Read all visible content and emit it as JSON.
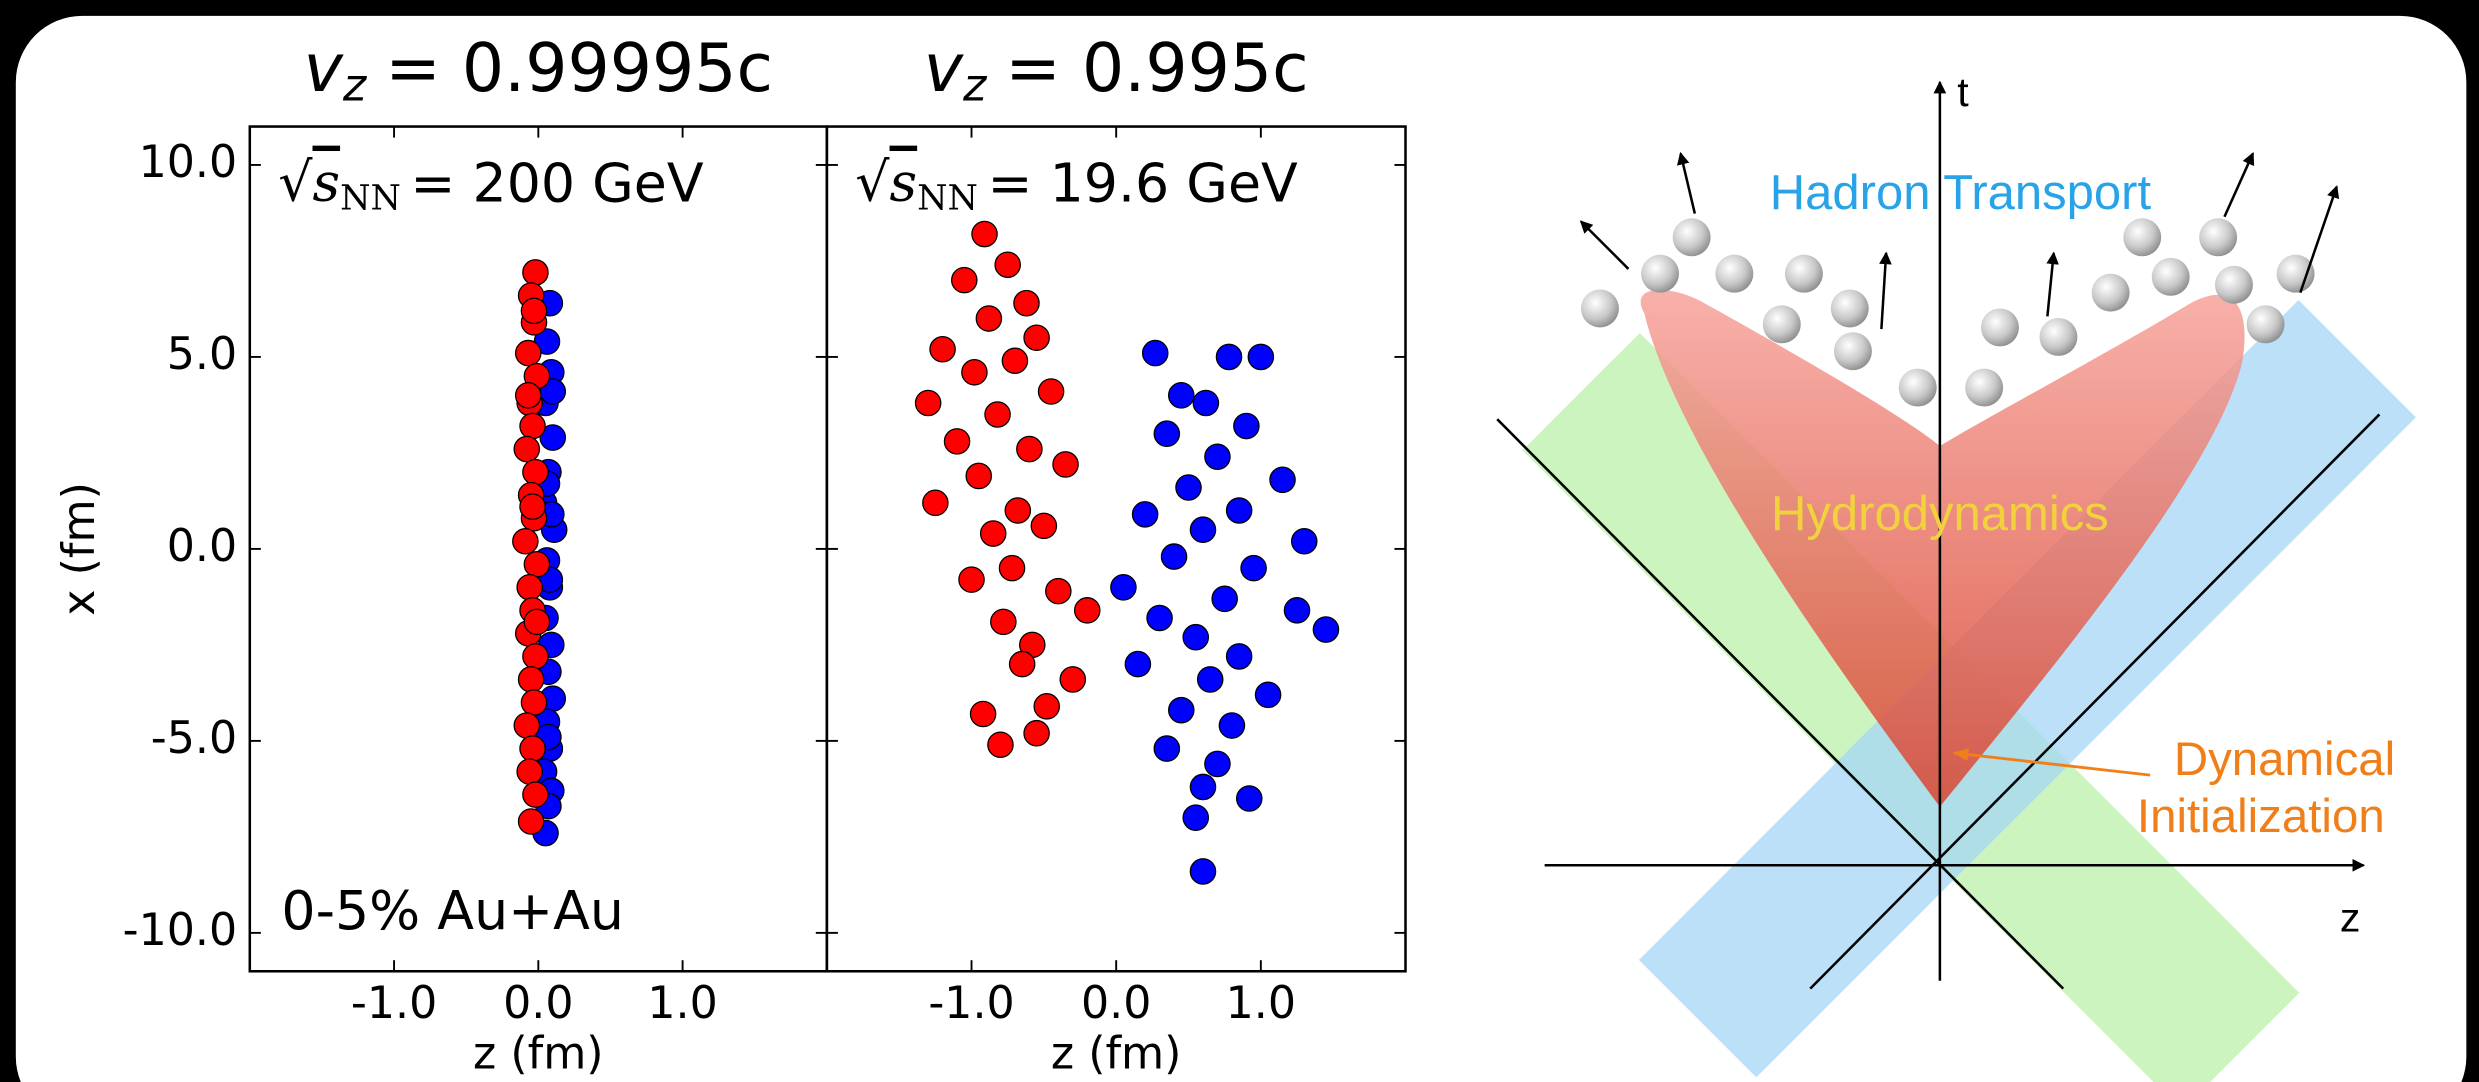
{
  "chart_data": [
    {
      "type": "scatter",
      "title": {
        "symbol": "v",
        "subscript": "z",
        "value": "= 0.99995c"
      },
      "annotation": {
        "root": "√",
        "symbol": "s",
        "subscript": "NN",
        "value": "= 200 GeV"
      },
      "note": "0-5% Au+Au",
      "xlabel": "z (fm)",
      "ylabel": "x (fm)",
      "xlim": [
        -2,
        2
      ],
      "ylim": [
        -11,
        11
      ],
      "xticks": [
        {
          "value": -1,
          "label": "-1.0"
        },
        {
          "value": 0,
          "label": "0.0"
        },
        {
          "value": 1,
          "label": "1.0"
        }
      ],
      "yticks": [
        {
          "value": 10,
          "label": "10.0"
        },
        {
          "value": 5,
          "label": "5.0"
        },
        {
          "value": 0,
          "label": "0.0"
        },
        {
          "value": -5,
          "label": "-5.0"
        },
        {
          "value": -10,
          "label": "-10.0"
        }
      ],
      "series": [
        {
          "color": "#0000ff",
          "x": [
            0.08,
            0.06,
            0.09,
            0.05,
            0.1,
            0.07,
            0.04,
            0.11,
            0.06,
            0.08,
            0.05,
            0.09,
            0.07,
            0.1,
            0.06,
            0.08,
            0.04,
            0.09,
            0.07,
            0.05,
            0.1,
            0.06,
            0.08,
            0.07,
            0.09
          ],
          "values": [
            6.4,
            5.4,
            4.6,
            3.8,
            2.9,
            2.0,
            1.2,
            0.5,
            -0.3,
            -1.0,
            -1.8,
            -2.5,
            -3.2,
            -3.9,
            -4.5,
            -5.2,
            -5.8,
            -6.3,
            -6.7,
            -7.4,
            4.1,
            1.7,
            -0.8,
            -4.9,
            0.9
          ]
        },
        {
          "color": "#ff0000",
          "x": [
            -0.02,
            -0.05,
            -0.03,
            -0.07,
            -0.01,
            -0.06,
            -0.04,
            -0.08,
            -0.02,
            -0.05,
            -0.03,
            -0.09,
            -0.01,
            -0.06,
            -0.04,
            -0.07,
            -0.02,
            -0.05,
            -0.03,
            -0.08,
            -0.04,
            -0.06,
            -0.02,
            -0.05,
            -0.03,
            -0.07,
            -0.04,
            -0.01
          ],
          "values": [
            7.2,
            6.6,
            5.9,
            5.1,
            4.5,
            3.8,
            3.2,
            2.6,
            2.0,
            1.4,
            0.8,
            0.2,
            -0.4,
            -1.0,
            -1.6,
            -2.2,
            -2.8,
            -3.4,
            -4.0,
            -4.6,
            -5.2,
            -5.8,
            -6.4,
            -7.1,
            6.2,
            4.0,
            1.1,
            -1.9
          ]
        }
      ]
    },
    {
      "type": "scatter",
      "title": {
        "symbol": "v",
        "subscript": "z",
        "value": "= 0.995c"
      },
      "annotation": {
        "root": "√",
        "symbol": "s",
        "subscript": "NN",
        "value": "= 19.6 GeV"
      },
      "xlabel": "z (fm)",
      "xlim": [
        -2,
        2
      ],
      "ylim": [
        -11,
        11
      ],
      "xticks": [
        {
          "value": -1,
          "label": "-1.0"
        },
        {
          "value": 0,
          "label": "0.0"
        },
        {
          "value": 1,
          "label": "1.0"
        }
      ],
      "series": [
        {
          "color": "#ff0000",
          "x": [
            -0.91,
            -0.75,
            -1.05,
            -0.62,
            -0.88,
            -1.2,
            -0.55,
            -0.98,
            -0.7,
            -1.3,
            -0.45,
            -0.82,
            -1.1,
            -0.6,
            -0.35,
            -0.95,
            -1.25,
            -0.68,
            -0.5,
            -0.85,
            -0.72,
            -1.0,
            -0.4,
            -0.78,
            -0.58,
            -0.3,
            -0.65,
            -0.92,
            -0.48,
            -0.2,
            -0.55,
            -0.8
          ],
          "values": [
            8.2,
            7.4,
            7.0,
            6.4,
            6.0,
            5.2,
            5.5,
            4.6,
            4.9,
            3.8,
            4.1,
            3.5,
            2.8,
            2.6,
            2.2,
            1.9,
            1.2,
            1.0,
            0.6,
            0.4,
            -0.5,
            -0.8,
            -1.1,
            -1.9,
            -2.5,
            -3.4,
            -3.0,
            -4.3,
            -4.1,
            -1.6,
            -4.8,
            -5.1
          ]
        },
        {
          "color": "#0000ff",
          "x": [
            0.27,
            0.78,
            1.0,
            0.45,
            0.62,
            0.9,
            0.35,
            0.7,
            1.15,
            0.5,
            0.85,
            0.2,
            0.6,
            1.3,
            0.4,
            0.95,
            0.05,
            0.75,
            1.25,
            0.3,
            0.55,
            1.45,
            0.85,
            0.15,
            0.65,
            1.05,
            0.45,
            0.8,
            0.35,
            0.7,
            0.6,
            0.55,
            0.92,
            0.6
          ],
          "values": [
            5.1,
            5.0,
            5.0,
            4.0,
            3.8,
            3.2,
            3.0,
            2.4,
            1.8,
            1.6,
            1.0,
            0.9,
            0.5,
            0.2,
            -0.2,
            -0.5,
            -1.0,
            -1.3,
            -1.6,
            -1.8,
            -2.3,
            -2.1,
            -2.8,
            -3.0,
            -3.4,
            -3.8,
            -4.2,
            -4.6,
            -5.2,
            -5.6,
            -6.2,
            -7.0,
            -6.5,
            -8.4
          ]
        }
      ]
    }
  ],
  "diagram": {
    "t_axis": "t",
    "z_axis": "z",
    "hadron_transport": "Hadron Transport",
    "hydrodynamics": "Hydrodynamics",
    "dynamical_initialization": [
      "Dynamical",
      "Initialization"
    ]
  }
}
